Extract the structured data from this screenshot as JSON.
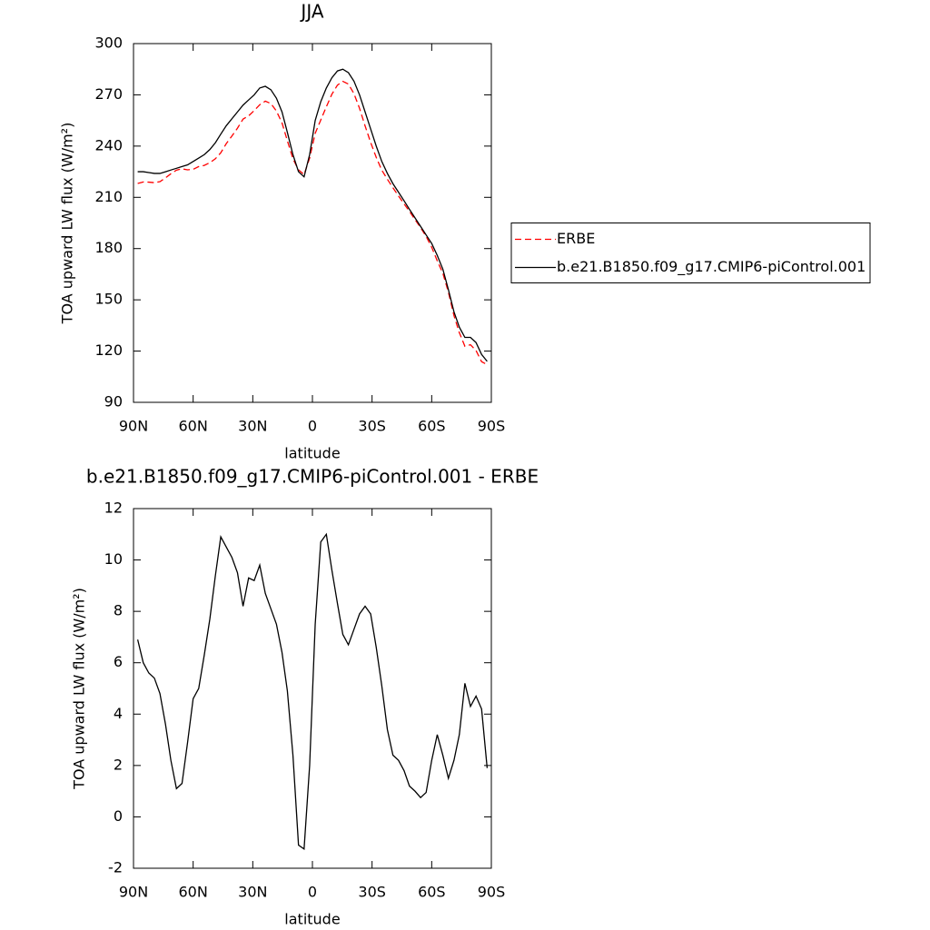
{
  "chart_data": [
    {
      "type": "line",
      "title": "JJA",
      "xlabel": "latitude",
      "ylabel": "TOA upward LW flux (W/m²)",
      "x": [
        87.9,
        85.1,
        82.3,
        79.5,
        76.7,
        73.9,
        71.2,
        68.4,
        65.6,
        62.8,
        60.0,
        57.2,
        54.4,
        51.6,
        48.8,
        46.1,
        43.3,
        40.5,
        37.7,
        34.9,
        32.1,
        29.3,
        26.5,
        23.7,
        20.9,
        18.1,
        15.3,
        12.6,
        9.8,
        7.0,
        4.2,
        1.4,
        -1.4,
        -4.2,
        -7.0,
        -9.8,
        -12.6,
        -15.3,
        -18.1,
        -20.9,
        -23.7,
        -26.5,
        -29.3,
        -32.1,
        -34.9,
        -37.7,
        -40.5,
        -43.3,
        -46.1,
        -48.8,
        -51.6,
        -54.4,
        -57.2,
        -60.0,
        -62.8,
        -65.6,
        -68.4,
        -71.2,
        -73.9,
        -76.7,
        -79.5,
        -82.3,
        -85.1,
        -87.9
      ],
      "series": [
        {
          "name": "ERBE",
          "color": "#ff0000",
          "linestyle": "dashed",
          "values": [
            218.1,
            219,
            218.9,
            218.6,
            219.2,
            221.4,
            223.8,
            225.9,
            226.7,
            226.1,
            226.4,
            228,
            228.7,
            230.3,
            232.6,
            236.1,
            241.5,
            245.9,
            250.5,
            255.8,
            257.7,
            260.8,
            264.2,
            266.3,
            264.9,
            260.5,
            253.6,
            243.1,
            232.6,
            226.1,
            223.3,
            233,
            247.5,
            255.3,
            263,
            270.4,
            275.7,
            277.9,
            276.3,
            270.7,
            262.1,
            251.8,
            242.1,
            233.4,
            225.9,
            220.6,
            215.6,
            210.8,
            206.2,
            201.8,
            197,
            192.3,
            187.1,
            180.8,
            172.8,
            165.6,
            154.5,
            140.8,
            130.8,
            122.8,
            123.7,
            120.3,
            113.8,
            112.1
          ]
        },
        {
          "name": "b.e21.B1850.f09_g17.CMIP6-piControl.001",
          "color": "#000000",
          "linestyle": "solid",
          "values": [
            225,
            225,
            224.5,
            224,
            224,
            225,
            226,
            227,
            228,
            229,
            231,
            233,
            235,
            238,
            242,
            247,
            252,
            256,
            260,
            264,
            267,
            270,
            274,
            275,
            273,
            268,
            260,
            248,
            235,
            225,
            222,
            235,
            255,
            266,
            274,
            280,
            284,
            285,
            283,
            278,
            270,
            260,
            250,
            240,
            231,
            224,
            218,
            213,
            208,
            203,
            198,
            193,
            188,
            183,
            176,
            168,
            156,
            143,
            134,
            128,
            128,
            125,
            118,
            114
          ]
        }
      ],
      "xlim": [
        90,
        -90
      ],
      "xticks": [
        {
          "value": 90,
          "label": "90N"
        },
        {
          "value": 60,
          "label": "60N"
        },
        {
          "value": 30,
          "label": "30N"
        },
        0,
        {
          "value": -30,
          "label": "30S"
        },
        {
          "value": -60,
          "label": "60S"
        },
        {
          "value": -90,
          "label": "90S"
        }
      ],
      "ylim": [
        90,
        300
      ],
      "yticks": [
        90,
        120,
        150,
        180,
        210,
        240,
        270,
        300
      ],
      "legend": "right"
    },
    {
      "type": "line",
      "title": "b.e21.B1850.f09_g17.CMIP6-piControl.001 - ERBE",
      "xlabel": "latitude",
      "ylabel": "TOA upward LW flux (W/m²)",
      "x": [
        87.9,
        85.1,
        82.3,
        79.5,
        76.7,
        73.9,
        71.2,
        68.4,
        65.6,
        62.8,
        60.0,
        57.2,
        54.4,
        51.6,
        48.8,
        46.1,
        43.3,
        40.5,
        37.7,
        34.9,
        32.1,
        29.3,
        26.5,
        23.7,
        20.9,
        18.1,
        15.3,
        12.6,
        9.8,
        7.0,
        4.2,
        1.4,
        -1.4,
        -4.2,
        -7.0,
        -9.8,
        -12.6,
        -15.3,
        -18.1,
        -20.9,
        -23.7,
        -26.5,
        -29.3,
        -32.1,
        -34.9,
        -37.7,
        -40.5,
        -43.3,
        -46.1,
        -48.8,
        -51.6,
        -54.4,
        -57.2,
        -60.0,
        -62.8,
        -65.6,
        -68.4,
        -71.2,
        -73.9,
        -76.7,
        -79.5,
        -82.3,
        -85.1,
        -87.9
      ],
      "series": [
        {
          "color": "#000000",
          "linestyle": "solid",
          "values": [
            6.9,
            6.0,
            5.6,
            5.4,
            4.8,
            3.6,
            2.2,
            1.1,
            1.3,
            2.9,
            4.6,
            5.0,
            6.3,
            7.7,
            9.4,
            10.9,
            10.5,
            10.1,
            9.5,
            8.2,
            9.3,
            9.2,
            9.8,
            8.7,
            8.1,
            7.5,
            6.4,
            4.9,
            2.4,
            -1.1,
            -1.25,
            2.0,
            7.5,
            10.7,
            11.0,
            9.6,
            8.3,
            7.1,
            6.7,
            7.3,
            7.9,
            8.2,
            7.9,
            6.6,
            5.1,
            3.4,
            2.4,
            2.2,
            1.8,
            1.2,
            1.0,
            0.75,
            0.95,
            2.2,
            3.2,
            2.4,
            1.5,
            2.2,
            3.2,
            5.2,
            4.3,
            4.7,
            4.2,
            1.9
          ]
        }
      ],
      "xlim": [
        90,
        -90
      ],
      "xticks": [
        {
          "value": 90,
          "label": "90N"
        },
        {
          "value": 60,
          "label": "60N"
        },
        {
          "value": 30,
          "label": "30N"
        },
        0,
        {
          "value": -30,
          "label": "30S"
        },
        {
          "value": -60,
          "label": "60S"
        },
        {
          "value": -90,
          "label": "90S"
        }
      ],
      "ylim": [
        -2,
        12
      ],
      "yticks": [
        -2,
        0,
        2,
        4,
        6,
        8,
        10,
        12
      ]
    }
  ]
}
